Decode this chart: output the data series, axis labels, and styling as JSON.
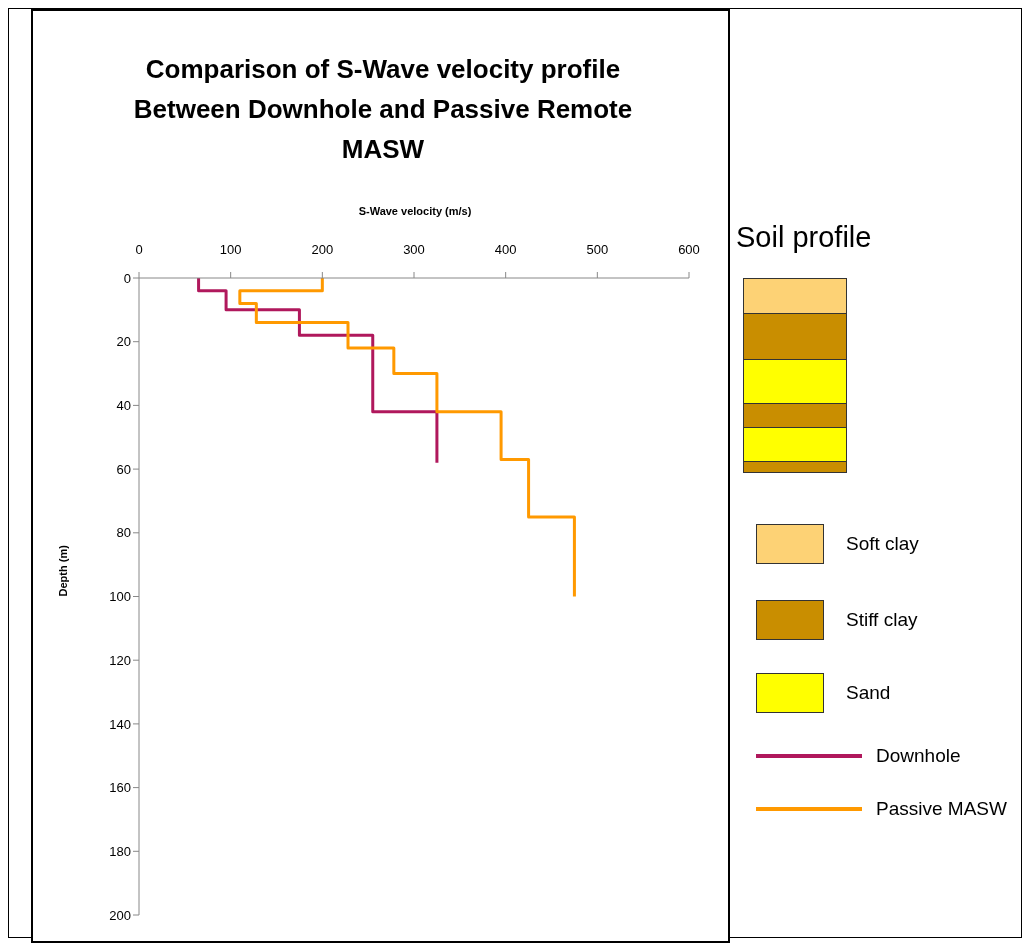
{
  "chart_data": [
    {
      "type": "line",
      "title": "Comparison of S-Wave velocity profile Between Downhole and Passive Remote MASW",
      "xlabel": "S-Wave velocity (m/s)",
      "ylabel": "Depth (m)",
      "xlim": [
        0,
        600
      ],
      "xticks": [
        0,
        100,
        200,
        300,
        400,
        500,
        600
      ],
      "ylim": [
        200,
        0
      ],
      "yticks": [
        0,
        20,
        40,
        60,
        80,
        100,
        120,
        140,
        160,
        180,
        200
      ],
      "grid": false,
      "legend": "right",
      "marker": "none",
      "line_style": "solid",
      "series": [
        {
          "name": "Downhole",
          "color": "#b0185c",
          "x": [
            65,
            65,
            95,
            95,
            175,
            175,
            255,
            255,
            325,
            325
          ],
          "values": [
            0,
            4,
            4,
            10,
            10,
            18,
            18,
            42,
            42,
            58
          ]
        },
        {
          "name": "Passive MASW",
          "color": "#ff9900",
          "x": [
            200,
            200,
            110,
            110,
            128,
            128,
            228,
            228,
            278,
            278,
            325,
            325,
            395,
            395,
            425,
            425,
            475,
            475
          ],
          "values": [
            0,
            4,
            4,
            8,
            8,
            14,
            14,
            22,
            22,
            30,
            30,
            42,
            42,
            57,
            57,
            75,
            75,
            100
          ]
        }
      ]
    },
    {
      "type": "other",
      "title": "Soil profile",
      "annotations": [
        "Soft clay",
        "Stiff clay",
        "Sand"
      ]
    }
  ]
}
